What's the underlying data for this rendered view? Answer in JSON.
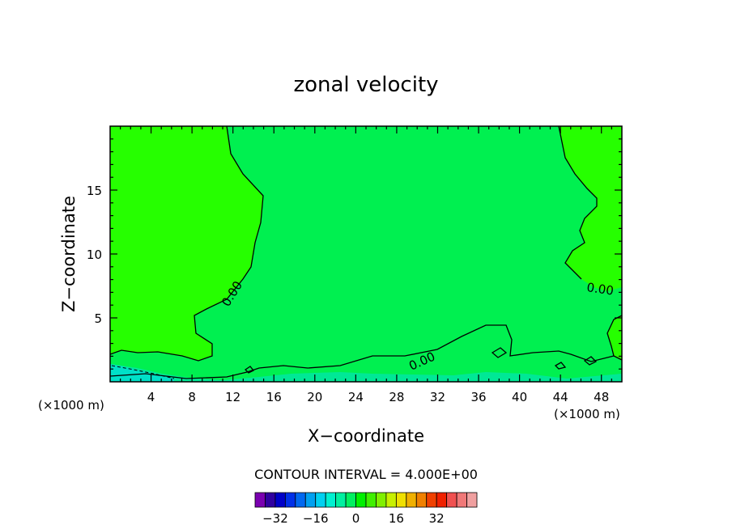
{
  "chart_data": {
    "type": "contour",
    "title": "zonal velocity",
    "xlabel": "X−coordinate",
    "ylabel": "Z−coordinate",
    "x_unit_left": "(×1000 m)",
    "x_unit_right": "(×1000 m)",
    "xlim": [
      0,
      50
    ],
    "ylim": [
      0,
      20
    ],
    "x_ticks": [
      4,
      8,
      12,
      16,
      20,
      24,
      28,
      32,
      36,
      40,
      44,
      48
    ],
    "x_tick_labels": [
      "4",
      "8",
      "12",
      "16",
      "20",
      "24",
      "28",
      "32",
      "36",
      "40",
      "44",
      "48"
    ],
    "y_ticks": [
      5,
      10,
      15
    ],
    "y_tick_labels": [
      "5",
      "10",
      "15"
    ],
    "contour_interval_text": "CONTOUR INTERVAL = 4.000E+00",
    "contour_labels": [
      "0.00",
      "0.00",
      "0.00"
    ],
    "regions": [
      {
        "level": "0 to 4",
        "color": "#26ff00",
        "area": "upper-left and upper-right, positive zonal velocity"
      },
      {
        "level": "-4 to 0",
        "color": "#00f050",
        "area": "central region, near-zero negative velocity"
      },
      {
        "level": "-8 to -4",
        "color": "#00e896",
        "area": "thin layer near bottom boundary"
      },
      {
        "level": "-12 to -8",
        "color": "#00e0c8",
        "area": "bottom-left corner"
      }
    ],
    "colorbar": {
      "colors": [
        "#7a00b0",
        "#3000a0",
        "#0000c8",
        "#0030e8",
        "#0068f0",
        "#00a0f0",
        "#00d0f0",
        "#00f0d0",
        "#00f0a0",
        "#00f060",
        "#00f000",
        "#40f000",
        "#80f000",
        "#c8f000",
        "#f0e000",
        "#f0b000",
        "#f08000",
        "#f04000",
        "#f02000",
        "#f05050",
        "#f07878",
        "#f0a0a0"
      ],
      "tick_labels": [
        "−32",
        "−16",
        "0",
        "16",
        "32"
      ],
      "tick_values": [
        -32,
        -16,
        0,
        16,
        32
      ],
      "range": [
        -40,
        48
      ]
    }
  }
}
